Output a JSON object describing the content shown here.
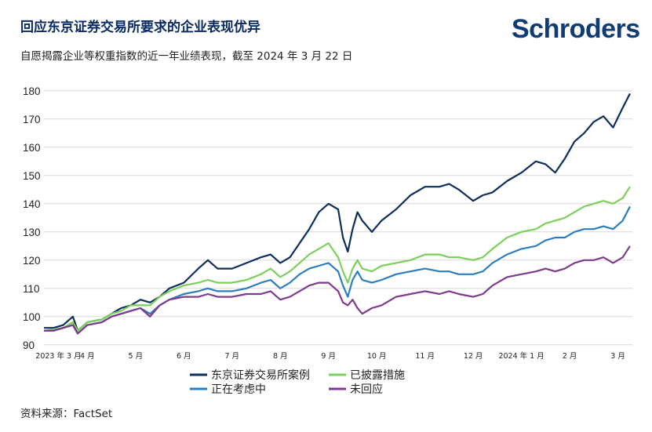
{
  "header": {
    "title": "回应东京证券交易所要求的企业表现优异",
    "subtitle": "自愿揭露企业等权重指数的近一年业绩表现，截至 2024 年 3 月 22 日"
  },
  "logo": {
    "text": "Schroders",
    "color": "#103b73"
  },
  "footer": {
    "source": "资料来源：FactSet"
  },
  "chart_data": {
    "type": "line",
    "title": "自愿揭露企业等权重指数的近一年业绩表现",
    "xlabel": "",
    "ylabel": "",
    "ylim": [
      88,
      183
    ],
    "yticks": [
      90,
      100,
      110,
      120,
      130,
      140,
      150,
      160,
      170,
      180
    ],
    "grid": true,
    "legend_position": "bottom-center",
    "x_ticks": [
      {
        "label": "2023 年 3 月",
        "t": 0.0
      },
      {
        "label": "4 月",
        "t": 0.6
      },
      {
        "label": "5 月",
        "t": 1.6
      },
      {
        "label": "6 月",
        "t": 2.6
      },
      {
        "label": "7 月",
        "t": 3.6
      },
      {
        "label": "8 月",
        "t": 4.6
      },
      {
        "label": "9 月",
        "t": 5.6
      },
      {
        "label": "10 月",
        "t": 6.6
      },
      {
        "label": "11 月",
        "t": 7.6
      },
      {
        "label": "12 月",
        "t": 8.6
      },
      {
        "label": "2024 年 1 月",
        "t": 9.6
      },
      {
        "label": "2 月",
        "t": 10.6
      },
      {
        "label": "3 月",
        "t": 11.6
      }
    ],
    "x_range": [
      -0.3,
      11.9
    ],
    "series": [
      {
        "name": "东京证券交易所案例",
        "color": "#0e2e5c",
        "points": [
          [
            -0.3,
            96
          ],
          [
            -0.1,
            96
          ],
          [
            0.1,
            97
          ],
          [
            0.3,
            100
          ],
          [
            0.4,
            95
          ],
          [
            0.6,
            98
          ],
          [
            0.9,
            99
          ],
          [
            1.1,
            101
          ],
          [
            1.3,
            103
          ],
          [
            1.5,
            104
          ],
          [
            1.7,
            106
          ],
          [
            1.9,
            105
          ],
          [
            2.1,
            107
          ],
          [
            2.3,
            110
          ],
          [
            2.6,
            112
          ],
          [
            2.9,
            117
          ],
          [
            3.1,
            120
          ],
          [
            3.3,
            117
          ],
          [
            3.6,
            117
          ],
          [
            3.9,
            119
          ],
          [
            4.2,
            121
          ],
          [
            4.4,
            122
          ],
          [
            4.6,
            119
          ],
          [
            4.8,
            121
          ],
          [
            5.0,
            126
          ],
          [
            5.2,
            131
          ],
          [
            5.4,
            137
          ],
          [
            5.6,
            140
          ],
          [
            5.8,
            138
          ],
          [
            5.9,
            128
          ],
          [
            6.0,
            123
          ],
          [
            6.1,
            131
          ],
          [
            6.2,
            137
          ],
          [
            6.3,
            134
          ],
          [
            6.5,
            130
          ],
          [
            6.7,
            134
          ],
          [
            7.0,
            138
          ],
          [
            7.3,
            143
          ],
          [
            7.6,
            146
          ],
          [
            7.9,
            146
          ],
          [
            8.1,
            147
          ],
          [
            8.3,
            145
          ],
          [
            8.6,
            141
          ],
          [
            8.8,
            143
          ],
          [
            9.0,
            144
          ],
          [
            9.3,
            148
          ],
          [
            9.6,
            151
          ],
          [
            9.9,
            155
          ],
          [
            10.1,
            154
          ],
          [
            10.3,
            151
          ],
          [
            10.5,
            156
          ],
          [
            10.7,
            162
          ],
          [
            10.9,
            165
          ],
          [
            11.1,
            169
          ],
          [
            11.3,
            171
          ],
          [
            11.5,
            167
          ],
          [
            11.7,
            174
          ],
          [
            11.85,
            179
          ]
        ]
      },
      {
        "name": "已披露措施",
        "color": "#7ccf5b",
        "points": [
          [
            -0.3,
            95
          ],
          [
            -0.1,
            95.5
          ],
          [
            0.1,
            96
          ],
          [
            0.3,
            98
          ],
          [
            0.4,
            95
          ],
          [
            0.6,
            98
          ],
          [
            0.9,
            99
          ],
          [
            1.1,
            101
          ],
          [
            1.3,
            102
          ],
          [
            1.5,
            104
          ],
          [
            1.7,
            104
          ],
          [
            1.9,
            104
          ],
          [
            2.1,
            107
          ],
          [
            2.3,
            109
          ],
          [
            2.6,
            111
          ],
          [
            2.9,
            112
          ],
          [
            3.1,
            113
          ],
          [
            3.3,
            112
          ],
          [
            3.6,
            112
          ],
          [
            3.9,
            113
          ],
          [
            4.2,
            115
          ],
          [
            4.4,
            117
          ],
          [
            4.6,
            114
          ],
          [
            4.8,
            116
          ],
          [
            5.0,
            119
          ],
          [
            5.2,
            122
          ],
          [
            5.4,
            124
          ],
          [
            5.6,
            126
          ],
          [
            5.8,
            121
          ],
          [
            5.9,
            116
          ],
          [
            6.0,
            112
          ],
          [
            6.1,
            117
          ],
          [
            6.2,
            120
          ],
          [
            6.3,
            117
          ],
          [
            6.5,
            116
          ],
          [
            6.7,
            118
          ],
          [
            7.0,
            119
          ],
          [
            7.3,
            120
          ],
          [
            7.6,
            122
          ],
          [
            7.9,
            122
          ],
          [
            8.1,
            121
          ],
          [
            8.3,
            121
          ],
          [
            8.6,
            120
          ],
          [
            8.8,
            121
          ],
          [
            9.0,
            124
          ],
          [
            9.3,
            128
          ],
          [
            9.6,
            130
          ],
          [
            9.9,
            131
          ],
          [
            10.1,
            133
          ],
          [
            10.3,
            134
          ],
          [
            10.5,
            135
          ],
          [
            10.7,
            137
          ],
          [
            10.9,
            139
          ],
          [
            11.1,
            140
          ],
          [
            11.3,
            141
          ],
          [
            11.5,
            140
          ],
          [
            11.7,
            142
          ],
          [
            11.85,
            146
          ]
        ]
      },
      {
        "name": "正在考虑中",
        "color": "#2b7dbd",
        "points": [
          [
            -0.3,
            95
          ],
          [
            -0.1,
            95
          ],
          [
            0.1,
            96
          ],
          [
            0.3,
            97
          ],
          [
            0.4,
            94
          ],
          [
            0.6,
            97
          ],
          [
            0.9,
            98
          ],
          [
            1.1,
            100
          ],
          [
            1.3,
            101
          ],
          [
            1.5,
            102
          ],
          [
            1.7,
            103
          ],
          [
            1.9,
            101
          ],
          [
            2.1,
            104
          ],
          [
            2.3,
            106
          ],
          [
            2.6,
            108
          ],
          [
            2.9,
            109
          ],
          [
            3.1,
            110
          ],
          [
            3.3,
            109
          ],
          [
            3.6,
            109
          ],
          [
            3.9,
            110
          ],
          [
            4.2,
            112
          ],
          [
            4.4,
            113
          ],
          [
            4.6,
            110
          ],
          [
            4.8,
            112
          ],
          [
            5.0,
            115
          ],
          [
            5.2,
            117
          ],
          [
            5.4,
            118
          ],
          [
            5.6,
            119
          ],
          [
            5.8,
            116
          ],
          [
            5.9,
            111
          ],
          [
            6.0,
            107
          ],
          [
            6.1,
            113
          ],
          [
            6.2,
            116
          ],
          [
            6.3,
            113
          ],
          [
            6.5,
            112
          ],
          [
            6.7,
            113
          ],
          [
            7.0,
            115
          ],
          [
            7.3,
            116
          ],
          [
            7.6,
            117
          ],
          [
            7.9,
            116
          ],
          [
            8.1,
            116
          ],
          [
            8.3,
            115
          ],
          [
            8.6,
            115
          ],
          [
            8.8,
            116
          ],
          [
            9.0,
            119
          ],
          [
            9.3,
            122
          ],
          [
            9.6,
            124
          ],
          [
            9.9,
            125
          ],
          [
            10.1,
            127
          ],
          [
            10.3,
            128
          ],
          [
            10.5,
            128
          ],
          [
            10.7,
            130
          ],
          [
            10.9,
            131
          ],
          [
            11.1,
            131
          ],
          [
            11.3,
            132
          ],
          [
            11.5,
            131
          ],
          [
            11.7,
            134
          ],
          [
            11.85,
            139
          ]
        ]
      },
      {
        "name": "未回应",
        "color": "#7e3a8c",
        "points": [
          [
            -0.3,
            95
          ],
          [
            -0.1,
            95
          ],
          [
            0.1,
            96
          ],
          [
            0.3,
            97
          ],
          [
            0.4,
            94
          ],
          [
            0.6,
            97
          ],
          [
            0.9,
            98
          ],
          [
            1.1,
            100
          ],
          [
            1.3,
            101
          ],
          [
            1.5,
            102
          ],
          [
            1.7,
            103
          ],
          [
            1.9,
            100
          ],
          [
            2.1,
            104
          ],
          [
            2.3,
            106
          ],
          [
            2.6,
            107
          ],
          [
            2.9,
            107
          ],
          [
            3.1,
            108
          ],
          [
            3.3,
            107
          ],
          [
            3.6,
            107
          ],
          [
            3.9,
            108
          ],
          [
            4.2,
            108
          ],
          [
            4.4,
            109
          ],
          [
            4.6,
            106
          ],
          [
            4.8,
            107
          ],
          [
            5.0,
            109
          ],
          [
            5.2,
            111
          ],
          [
            5.4,
            112
          ],
          [
            5.6,
            112
          ],
          [
            5.8,
            109
          ],
          [
            5.9,
            105
          ],
          [
            6.0,
            104
          ],
          [
            6.1,
            106
          ],
          [
            6.2,
            103
          ],
          [
            6.3,
            101
          ],
          [
            6.5,
            103
          ],
          [
            6.7,
            104
          ],
          [
            7.0,
            107
          ],
          [
            7.3,
            108
          ],
          [
            7.6,
            109
          ],
          [
            7.9,
            108
          ],
          [
            8.1,
            109
          ],
          [
            8.3,
            108
          ],
          [
            8.6,
            107
          ],
          [
            8.8,
            108
          ],
          [
            9.0,
            111
          ],
          [
            9.3,
            114
          ],
          [
            9.6,
            115
          ],
          [
            9.9,
            116
          ],
          [
            10.1,
            117
          ],
          [
            10.3,
            116
          ],
          [
            10.5,
            117
          ],
          [
            10.7,
            119
          ],
          [
            10.9,
            120
          ],
          [
            11.1,
            120
          ],
          [
            11.3,
            121
          ],
          [
            11.5,
            119
          ],
          [
            11.7,
            121
          ],
          [
            11.85,
            125
          ]
        ]
      }
    ]
  }
}
